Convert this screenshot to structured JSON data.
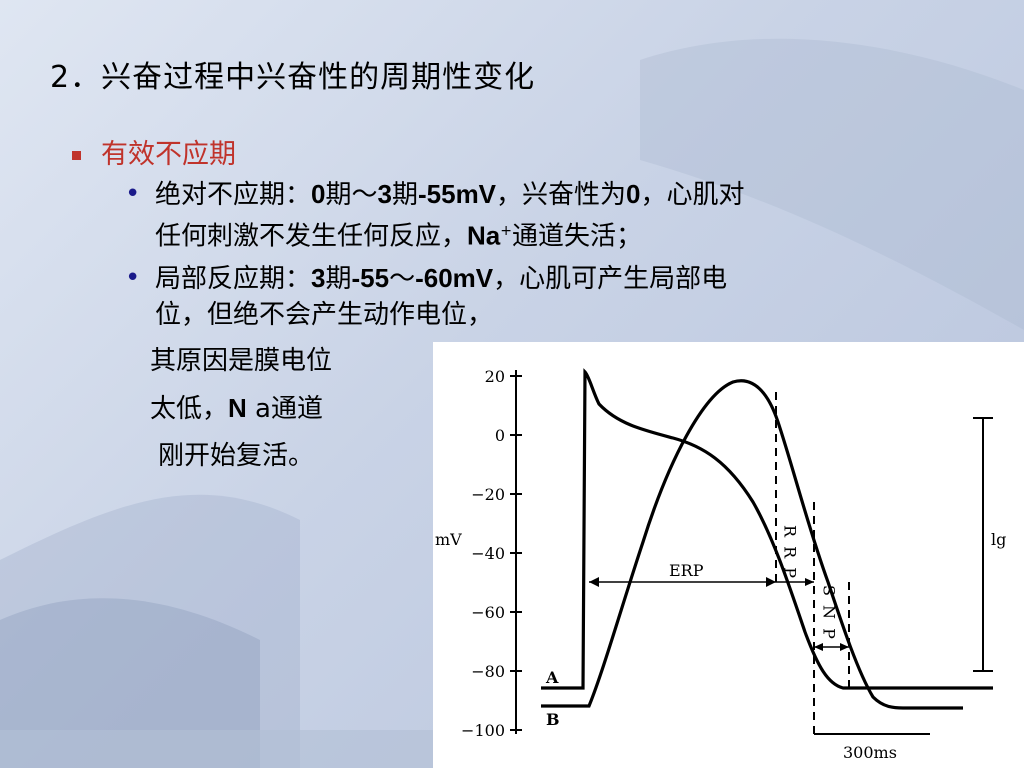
{
  "slide": {
    "title": "2．兴奋过程中兴奋性的周期性变化",
    "heading": "有效不应期",
    "bullet1": {
      "label": "绝对不应期：",
      "a": "0",
      "b": "期～",
      "c": "3",
      "d": "期",
      "e": "-55mV",
      "f": "，兴奋性为",
      "g": "0",
      "h": "，心肌对",
      "line2a": "任何刺激不发生任何反应，",
      "na": "Na",
      "sup": "+",
      "line2b": "通道失活；"
    },
    "bullet2": {
      "label": "局部反应期：",
      "a": "3",
      "b": "期",
      "c": "-55",
      "d": "～",
      "e": "-60mV",
      "f": "，心肌可产生局部电",
      "line2": "位，但绝不会产生动作电位，"
    },
    "cont1": "其原因是膜电位",
    "cont2a": "太低，",
    "cont2b": "N",
    "cont2c": " a通道",
    "cont3": "刚开始复活。"
  },
  "chart_data": {
    "type": "line",
    "ylabel": "mV",
    "yticks": [
      "20",
      "0",
      "-20",
      "-40",
      "-60",
      "-80",
      "-100"
    ],
    "ylim": [
      -100,
      20
    ],
    "series": [
      {
        "name": "A",
        "desc": "action potential",
        "points": [
          [
            0,
            -86
          ],
          [
            60,
            -86
          ],
          [
            62,
            20
          ],
          [
            70,
            5
          ],
          [
            100,
            -5
          ],
          [
            160,
            -15
          ],
          [
            210,
            -35
          ],
          [
            250,
            -65
          ],
          [
            290,
            -84
          ],
          [
            400,
            -86
          ]
        ]
      },
      {
        "name": "B",
        "desc": "excitability curve",
        "points": [
          [
            0,
            -92
          ],
          [
            70,
            -92
          ],
          [
            110,
            -40
          ],
          [
            150,
            10
          ],
          [
            170,
            18
          ],
          [
            200,
            5
          ],
          [
            250,
            -60
          ],
          [
            290,
            -92
          ],
          [
            350,
            -92
          ]
        ]
      }
    ],
    "annotations": [
      "ERP",
      "R R P",
      "S N P",
      "lg",
      "300ms"
    ],
    "grid": false
  }
}
